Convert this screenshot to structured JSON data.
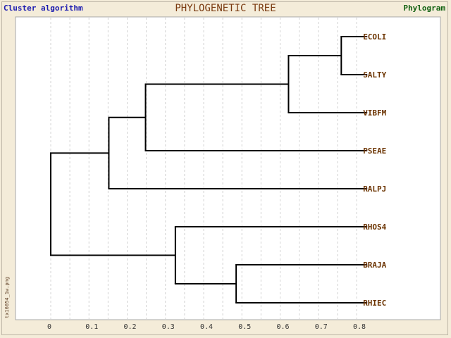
{
  "header": {
    "left_label": "Cluster algorithm",
    "title": "PHYLOGENETIC TREE",
    "right_label": "Phylogram"
  },
  "side_label": "tx16054_1w.png",
  "axis": {
    "min": 0,
    "max": 0.85,
    "ticks": [
      {
        "value": 0,
        "label": "0"
      },
      {
        "value": 0.1,
        "label": "0.1"
      },
      {
        "value": 0.2,
        "label": "0.2"
      },
      {
        "value": 0.3,
        "label": "0.3"
      },
      {
        "value": 0.4,
        "label": "0.4"
      },
      {
        "value": 0.5,
        "label": "0.5"
      },
      {
        "value": 0.6,
        "label": "0.6"
      },
      {
        "value": 0.7,
        "label": "0.7"
      },
      {
        "value": 0.8,
        "label": "0.8"
      }
    ],
    "grid": true
  },
  "colors": {
    "label": "#6b3300",
    "branch": "#000000",
    "grid": "#d4d4d4",
    "tick_label": "#333333"
  },
  "tree": {
    "height": 0.0,
    "children": [
      {
        "height": 0.152,
        "children": [
          {
            "height": 0.248,
            "children": [
              {
                "height": 0.622,
                "children": [
                  {
                    "height": 0.76,
                    "children": [
                      {
                        "name": "ECOLI",
                        "height": 0.828
                      },
                      {
                        "name": "SALTY",
                        "height": 0.828
                      }
                    ]
                  },
                  {
                    "name": "VIBFM",
                    "height": 0.828
                  }
                ]
              },
              {
                "name": "PSEAE",
                "height": 0.828
              }
            ]
          },
          {
            "name": "RALPJ",
            "height": 0.828
          }
        ]
      },
      {
        "height": 0.326,
        "children": [
          {
            "name": "RHOS4",
            "height": 0.828
          },
          {
            "height": 0.485,
            "children": [
              {
                "name": "BRAJA",
                "height": 0.828
              },
              {
                "name": "RHIEC",
                "height": 0.828
              }
            ]
          }
        ]
      }
    ]
  }
}
